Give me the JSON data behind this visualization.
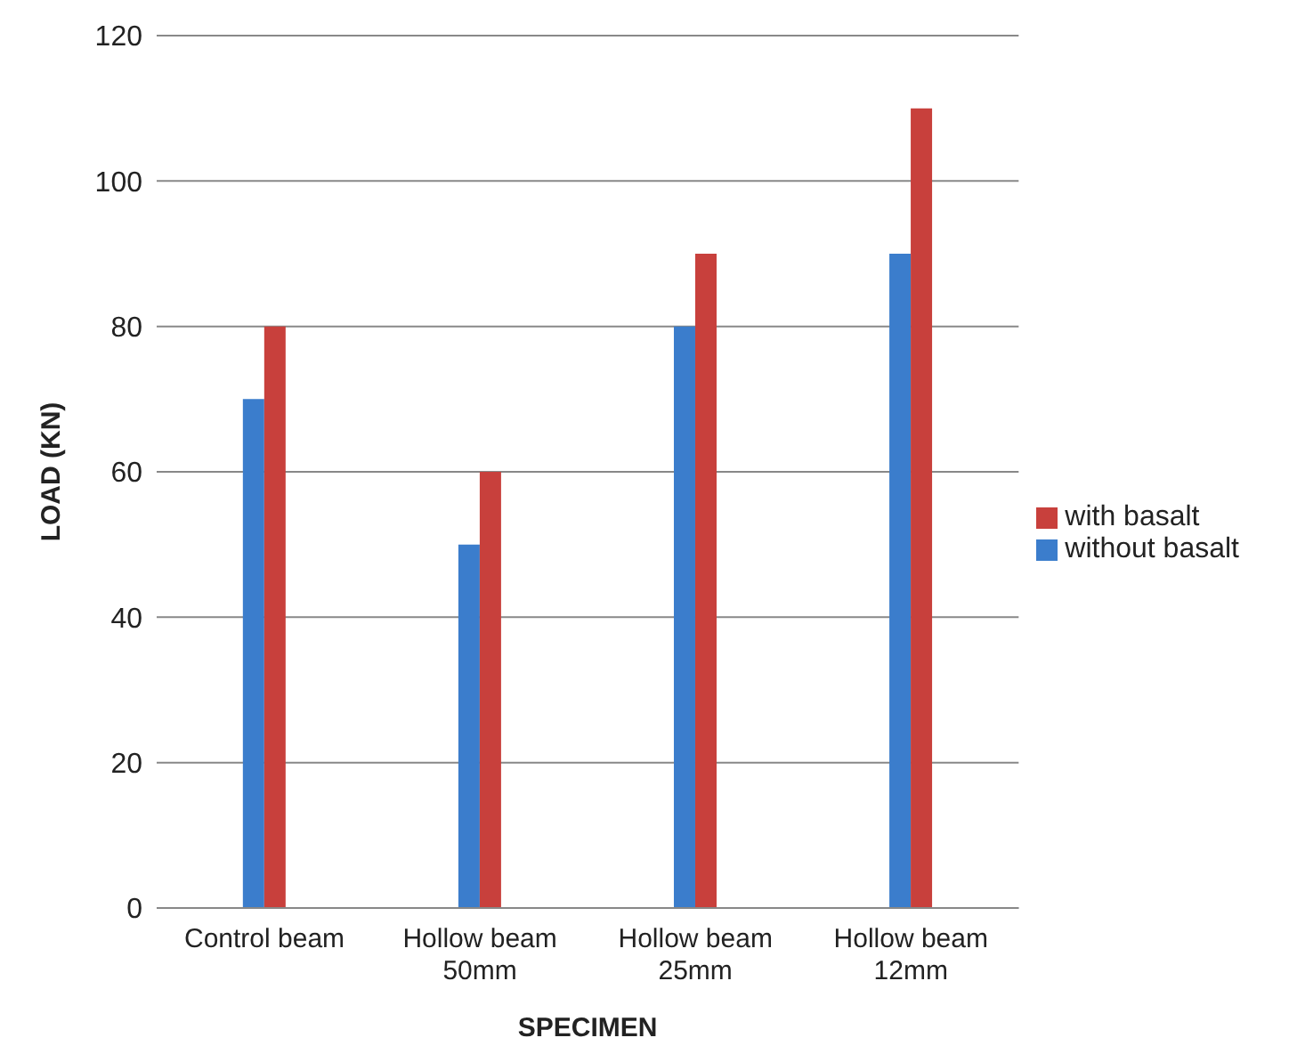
{
  "chart_data": {
    "type": "bar",
    "xlabel": "SPECIMEN",
    "ylabel": "LOAD (KN)",
    "categories": [
      "Control beam",
      "Hollow beam 50mm",
      "Hollow beam 25mm",
      "Hollow beam 12mm"
    ],
    "series": [
      {
        "name": "without basalt",
        "color": "#3b7dcc",
        "values": [
          70,
          50,
          80,
          90
        ]
      },
      {
        "name": "with basalt",
        "color": "#c8403c",
        "values": [
          80,
          60,
          90,
          110
        ]
      }
    ],
    "ylim": [
      0,
      120
    ],
    "yticks": [
      0,
      20,
      40,
      60,
      80,
      100,
      120
    ],
    "grid": "y",
    "legend": "right"
  }
}
